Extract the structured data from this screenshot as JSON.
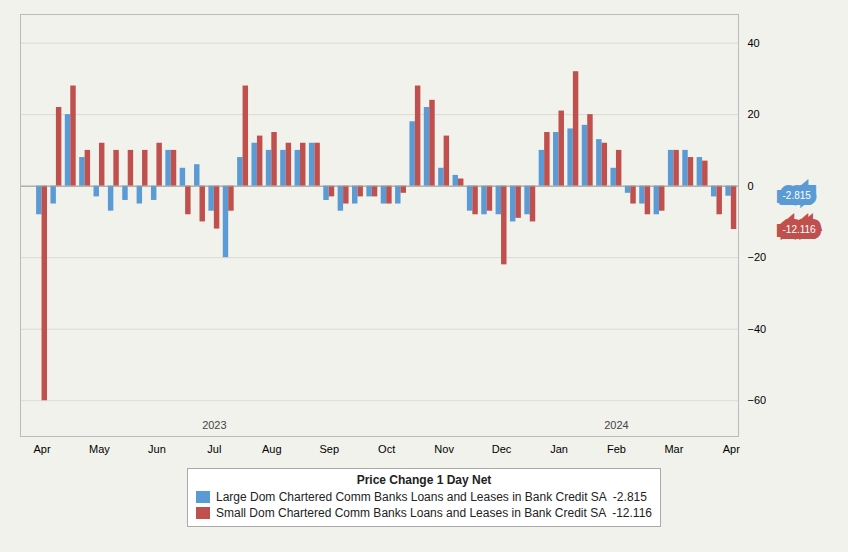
{
  "chart_data": {
    "type": "bar",
    "categories": [
      "Apr",
      null,
      null,
      null,
      "May",
      null,
      null,
      null,
      "Jun",
      null,
      null,
      null,
      "Jul",
      null,
      null,
      null,
      "Aug",
      null,
      null,
      null,
      "Sep",
      null,
      null,
      null,
      "Oct",
      null,
      null,
      null,
      "Nov",
      null,
      null,
      null,
      "Dec",
      null,
      null,
      null,
      "Jan",
      null,
      null,
      null,
      "Feb",
      null,
      null,
      null,
      "Mar",
      null,
      null,
      null,
      "Apr"
    ],
    "series": [
      {
        "name": "Large Dom Chartered Comm Banks Loans and Leases in Bank Credit SA  -2.815",
        "color": "#5B9BD5",
        "values": [
          -8.0,
          -5.0,
          20.0,
          8.0,
          -3.0,
          -7.0,
          -4.0,
          -5.0,
          -4.0,
          10.0,
          5.0,
          6.0,
          -7.0,
          -20.0,
          8.0,
          12.0,
          10.0,
          10.0,
          10.0,
          12.0,
          -4.0,
          -7.0,
          -5.0,
          -3.0,
          -5.0,
          -5.0,
          18.0,
          22.0,
          5.0,
          3.0,
          -7.0,
          -8.0,
          -8.0,
          -10.0,
          -8.0,
          10.0,
          15.0,
          16.0,
          17.0,
          13.0,
          5.0,
          -2.0,
          -5.0,
          -8.0,
          10.0,
          10.0,
          8.0,
          -3.0,
          -2.815
        ]
      },
      {
        "name": "Small Dom Chartered Comm Banks Loans and Leases in Bank Credit SA  -12.116",
        "color": "#C0504D",
        "values": [
          -60.0,
          22.0,
          28.0,
          10.0,
          12.0,
          10.0,
          10.0,
          10.0,
          12.0,
          10.0,
          -8.0,
          -10.0,
          -12.0,
          -7.0,
          28.0,
          14.0,
          15.0,
          12.0,
          12.0,
          12.0,
          -3.0,
          -5.0,
          -3.0,
          -3.0,
          -5.0,
          -2.0,
          28.0,
          24.0,
          14.0,
          2.0,
          -8.0,
          -7.0,
          -22.0,
          -9.0,
          -10.0,
          15.0,
          21.0,
          32.0,
          20.0,
          12.0,
          10.0,
          -5.0,
          -8.0,
          -7.0,
          10.0,
          8.0,
          7.0,
          -8.0,
          -12.116
        ]
      }
    ],
    "ylim": [
      -70,
      48
    ],
    "yticks": [
      -60,
      -40,
      -20,
      0,
      20,
      40
    ],
    "grid": true,
    "legend": "bottom",
    "legend_title": "Price Change 1 Day Net",
    "annotations": [
      {
        "text": "2023",
        "x": 12,
        "y": -67
      },
      {
        "text": "2024",
        "x": 40,
        "y": -67
      },
      {
        "text": "-2.815",
        "y": -2.815,
        "color": "#5B9BD5"
      },
      {
        "text": "-12.116",
        "y": -12.116,
        "color": "#C0504D"
      }
    ]
  }
}
